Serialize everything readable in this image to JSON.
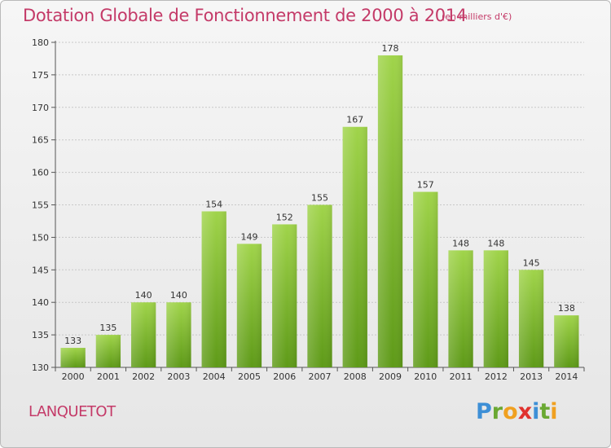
{
  "header": {
    "title": "Dotation Globale de Fonctionnement de 2000 à 2014",
    "unit": "(en milliers d'€)"
  },
  "footer": {
    "commune": "LANQUETOT",
    "logo_letters": [
      {
        "ch": "P",
        "color": "#3d8fd6"
      },
      {
        "ch": "r",
        "color": "#6aa832"
      },
      {
        "ch": "o",
        "color": "#f0a020"
      },
      {
        "ch": "x",
        "color": "#e0322e"
      },
      {
        "ch": "i",
        "color": "#3d8fd6"
      },
      {
        "ch": "t",
        "color": "#6aa832"
      },
      {
        "ch": "i",
        "color": "#f0a020"
      }
    ]
  },
  "chart_data": {
    "type": "bar",
    "categories": [
      "2000",
      "2001",
      "2002",
      "2003",
      "2004",
      "2005",
      "2006",
      "2007",
      "2008",
      "2009",
      "2010",
      "2011",
      "2012",
      "2013",
      "2014"
    ],
    "values": [
      133,
      135,
      140,
      140,
      154,
      149,
      152,
      155,
      167,
      178,
      157,
      148,
      148,
      145,
      138
    ],
    "title": "Dotation Globale de Fonctionnement de 2000 à 2014",
    "xlabel": "",
    "ylabel": "",
    "ylim": [
      130,
      180
    ],
    "yticks": [
      130,
      135,
      140,
      145,
      150,
      155,
      160,
      165,
      170,
      175,
      180
    ],
    "grid": true,
    "bar_color_top": "#a0d44a",
    "bar_color_bottom": "#5e9a18",
    "title_color": "#c43a68"
  }
}
